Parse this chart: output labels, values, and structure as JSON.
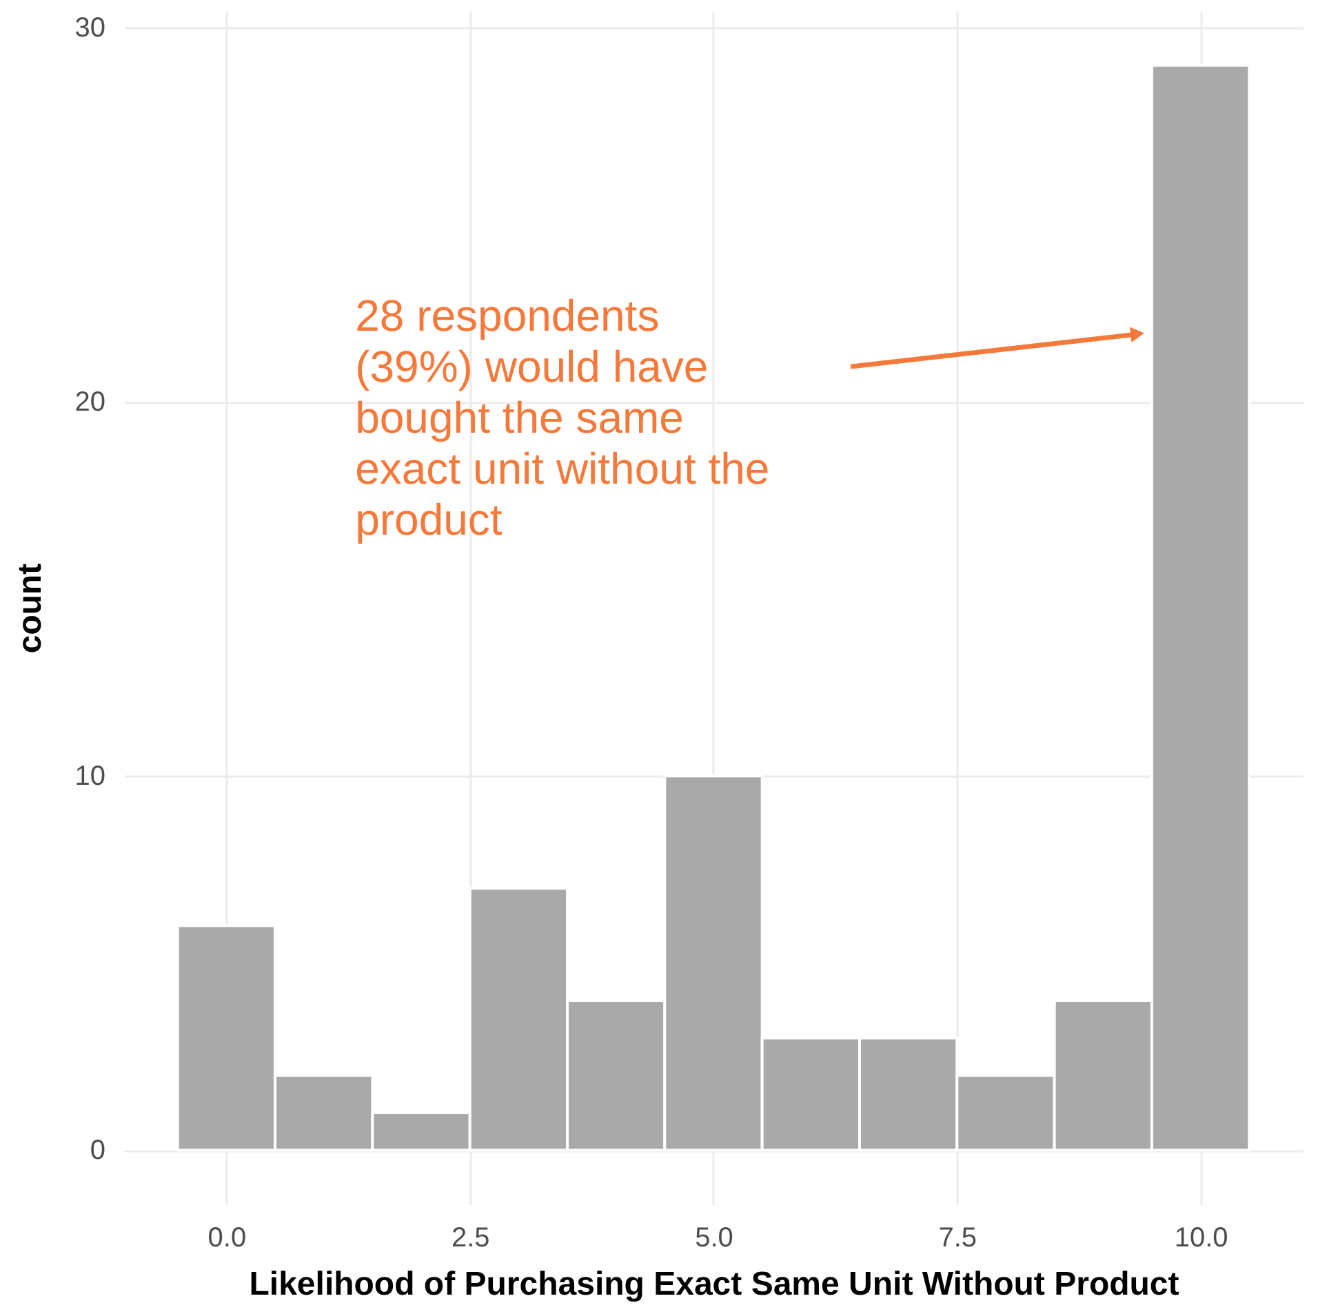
{
  "chart_data": {
    "type": "histogram",
    "xlabel": "Likelihood of Purchasing Exact Same Unit Without Product",
    "ylabel": "count",
    "bins": [
      -0.5,
      0.5,
      1.5,
      2.5,
      3.5,
      4.5,
      5.5,
      6.5,
      7.5,
      8.5,
      9.5,
      10.5
    ],
    "values": [
      6,
      2,
      1,
      7,
      4,
      10,
      3,
      3,
      2,
      4,
      29
    ],
    "color": "#a9a9a9",
    "xlim": [
      -1.05,
      11.05
    ],
    "xticks": [
      {
        "value": 0,
        "label": "0.0"
      },
      {
        "value": 2.5,
        "label": "2.5"
      },
      {
        "value": 5,
        "label": "5.0"
      },
      {
        "value": 7.5,
        "label": "7.5"
      },
      {
        "value": 10,
        "label": "10.0"
      }
    ],
    "ylim": [
      -1.45,
      30.45
    ],
    "yticks": [
      0,
      10,
      20,
      30
    ],
    "grid": true,
    "annotations": [
      "28 respondents\n(39%) would have\nbought the same\nexact unit without the\nproduct"
    ]
  }
}
